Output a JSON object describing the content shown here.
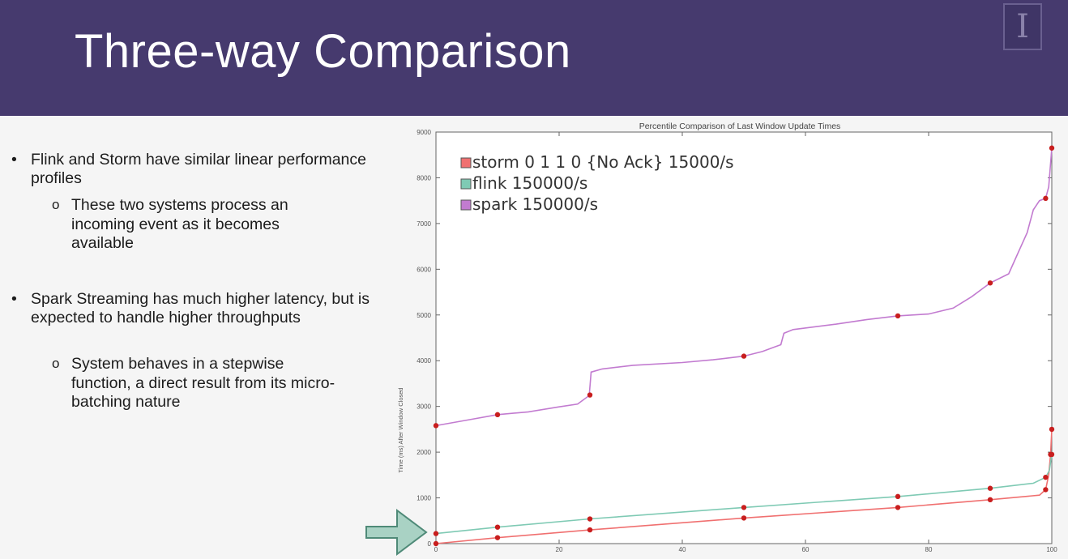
{
  "slide": {
    "title": "Three-way Comparison",
    "logo_letter": "I"
  },
  "bullets": [
    {
      "text": "Flink and Storm have similar linear performance profiles",
      "sub": "These two systems process an incoming event as it becomes available"
    },
    {
      "text": "Spark Streaming has much higher latency, but is expected to handle higher throughputs",
      "sub": "System behaves in a stepwise function, a direct result from its micro-batching nature"
    }
  ],
  "colors": {
    "header": "#463a6e",
    "storm": "#f07070",
    "flink": "#7fcab4",
    "spark": "#c27bd0",
    "marker": "#c81e1e",
    "arrow": "#a9d2c4"
  },
  "chart_data": {
    "type": "line",
    "title": "Percentile Comparison of Last Window Update Times",
    "ylabel": "Time (ms) After Window Closed",
    "xlim": [
      0,
      100
    ],
    "ylim": [
      0,
      9000
    ],
    "xticks": [
      0,
      20,
      40,
      60,
      80,
      100
    ],
    "yticks": [
      0,
      1000,
      2000,
      3000,
      4000,
      5000,
      6000,
      7000,
      8000,
      9000
    ],
    "legend_position": "top-left",
    "series": [
      {
        "name": "storm 0 1 1 0 {No Ack} 15000/s",
        "color": "#f07070",
        "points": [
          [
            0,
            0
          ],
          [
            10,
            130
          ],
          [
            25,
            300
          ],
          [
            50,
            560
          ],
          [
            75,
            790
          ],
          [
            90,
            960
          ],
          [
            98,
            1060
          ],
          [
            99,
            1180
          ],
          [
            99.5,
            1500
          ],
          [
            99.8,
            1950
          ],
          [
            100,
            2500
          ]
        ],
        "markers": [
          [
            0,
            0
          ],
          [
            10,
            130
          ],
          [
            25,
            300
          ],
          [
            50,
            560
          ],
          [
            75,
            790
          ],
          [
            90,
            960
          ],
          [
            99,
            1180
          ],
          [
            99.8,
            1950
          ],
          [
            100,
            2500
          ]
        ]
      },
      {
        "name": "flink 150000/s",
        "color": "#7fcab4",
        "points": [
          [
            0,
            220
          ],
          [
            10,
            360
          ],
          [
            25,
            540
          ],
          [
            50,
            790
          ],
          [
            75,
            1030
          ],
          [
            90,
            1210
          ],
          [
            97,
            1320
          ],
          [
            99,
            1450
          ],
          [
            99.6,
            1600
          ],
          [
            100,
            1950
          ]
        ],
        "markers": [
          [
            0,
            220
          ],
          [
            10,
            360
          ],
          [
            25,
            540
          ],
          [
            50,
            790
          ],
          [
            75,
            1030
          ],
          [
            90,
            1210
          ],
          [
            99,
            1450
          ],
          [
            100,
            1950
          ]
        ]
      },
      {
        "name": "spark 150000/s",
        "color": "#c27bd0",
        "points": [
          [
            0,
            2580
          ],
          [
            5,
            2700
          ],
          [
            10,
            2820
          ],
          [
            15,
            2880
          ],
          [
            20,
            2990
          ],
          [
            23,
            3050
          ],
          [
            25,
            3250
          ],
          [
            24.9,
            3250
          ],
          [
            25.2,
            3750
          ],
          [
            27,
            3820
          ],
          [
            32,
            3900
          ],
          [
            40,
            3960
          ],
          [
            45,
            4020
          ],
          [
            50,
            4100
          ],
          [
            53,
            4200
          ],
          [
            55,
            4300
          ],
          [
            56,
            4350
          ],
          [
            56.5,
            4600
          ],
          [
            58,
            4680
          ],
          [
            65,
            4800
          ],
          [
            70,
            4900
          ],
          [
            75,
            4980
          ],
          [
            80,
            5020
          ],
          [
            84,
            5150
          ],
          [
            87,
            5400
          ],
          [
            89,
            5600
          ],
          [
            90,
            5700
          ],
          [
            93,
            5900
          ],
          [
            94,
            6200
          ],
          [
            95,
            6500
          ],
          [
            96,
            6800
          ],
          [
            97,
            7300
          ],
          [
            98,
            7500
          ],
          [
            99,
            7550
          ],
          [
            99.5,
            7800
          ],
          [
            100,
            8650
          ]
        ],
        "markers": [
          [
            0,
            2580
          ],
          [
            10,
            2820
          ],
          [
            25,
            3250
          ],
          [
            50,
            4100
          ],
          [
            75,
            4980
          ],
          [
            90,
            5700
          ],
          [
            99,
            7550
          ],
          [
            100,
            8650
          ]
        ]
      }
    ]
  }
}
